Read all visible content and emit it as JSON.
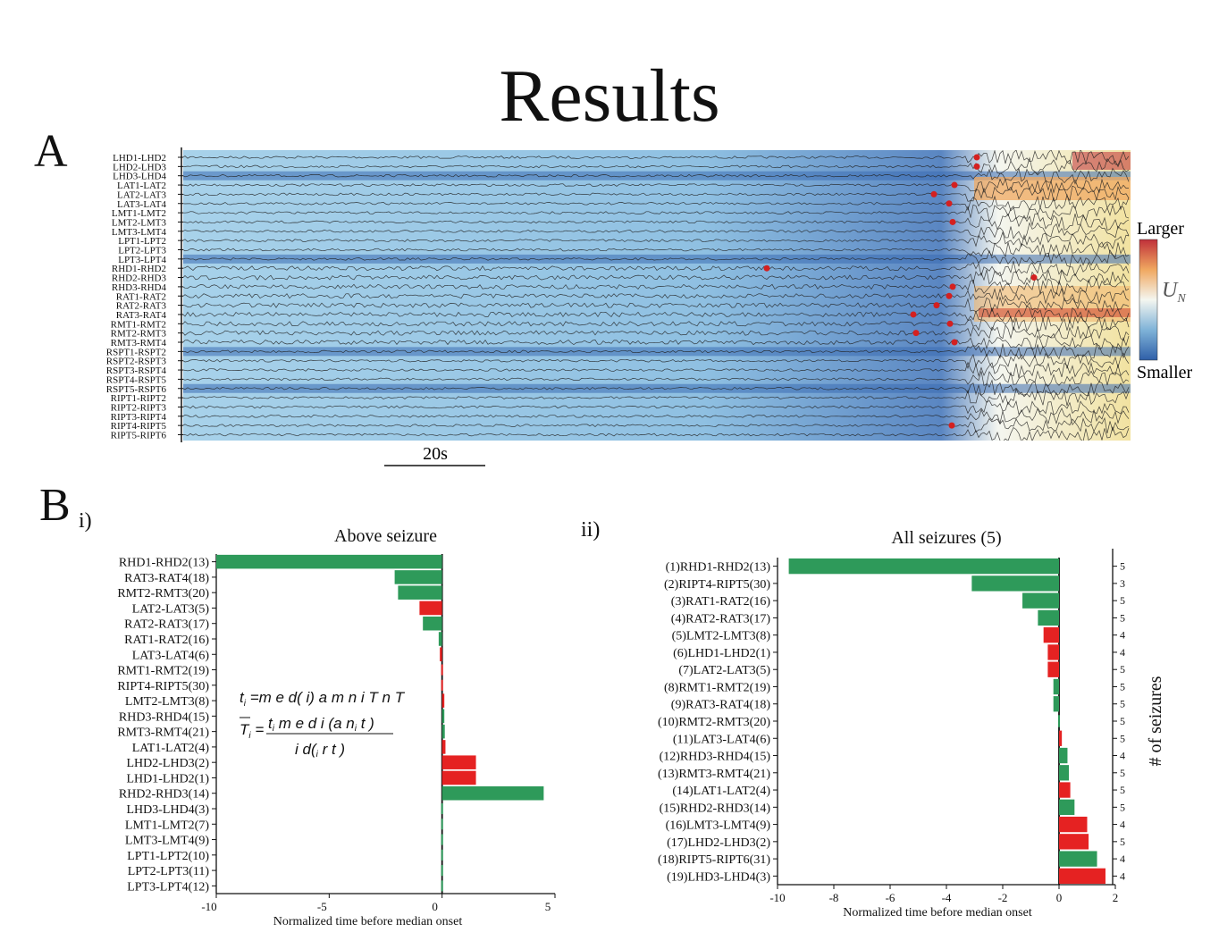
{
  "slide": {
    "title": "Results",
    "panel_a_letter": "A",
    "panel_b_letter": "B",
    "sub_i": "i)",
    "sub_ii": "ii)"
  },
  "panel_a": {
    "channels": [
      "LHD1-LHD2",
      "LHD2-LHD3",
      "LHD3-LHD4",
      "LAT1-LAT2",
      "LAT2-LAT3",
      "LAT3-LAT4",
      "LMT1-LMT2",
      "LMT2-LMT3",
      "LMT3-LMT4",
      "LPT1-LPT2",
      "LPT2-LPT3",
      "LPT3-LPT4",
      "RHD1-RHD2",
      "RHD2-RHD3",
      "RHD3-RHD4",
      "RAT1-RAT2",
      "RAT2-RAT3",
      "RAT3-RAT4",
      "RMT1-RMT2",
      "RMT2-RMT3",
      "RMT3-RMT4",
      "RSPT1-RSPT2",
      "RSPT2-RSPT3",
      "RSPT3-RSPT4",
      "RSPT4-RSPT5",
      "RSPT5-RSPT6",
      "RIPT1-RIPT2",
      "RIPT2-RIPT3",
      "RIPT3-RIPT4",
      "RIPT4-RIPT5",
      "RIPT5-RIPT6"
    ],
    "scale_bar_label": "20s",
    "colorbar": {
      "top_label": "Larger",
      "bottom_label": "Smaller",
      "symbol": "U",
      "subscript": "N"
    },
    "colors": {
      "low": "#2f5fa8",
      "mid": "#e8f2f6",
      "high": "#c0303a"
    }
  },
  "panel_b_i": {
    "chart_data": {
      "type": "bar",
      "orientation": "horizontal",
      "title": "Above seizure",
      "xlabel": "Normalized time before median onset",
      "xlim": [
        -10,
        5
      ],
      "xticks": [
        "-10",
        "-5",
        "0",
        "5"
      ],
      "categories": [
        "RHD1-RHD2(13)",
        "RAT3-RAT4(18)",
        "RMT2-RMT3(20)",
        "LAT2-LAT3(5)",
        "RAT2-RAT3(17)",
        "RAT1-RAT2(16)",
        "LAT3-LAT4(6)",
        "RMT1-RMT2(19)",
        "RIPT4-RIPT5(30)",
        "LMT2-LMT3(8)",
        "RHD3-RHD4(15)",
        "RMT3-RMT4(21)",
        "LAT1-LAT2(4)",
        "LHD2-LHD3(2)",
        "LHD1-LHD2(1)",
        "RHD2-RHD3(14)",
        "LHD3-LHD4(3)",
        "LMT1-LMT2(7)",
        "LMT3-LMT4(9)",
        "LPT1-LPT2(10)",
        "LPT2-LPT3(11)",
        "LPT3-LPT4(12)"
      ],
      "values": [
        -10,
        -2.1,
        -1.95,
        -1,
        -0.85,
        -0.15,
        -0.1,
        0,
        0,
        0.1,
        0.1,
        0.12,
        0.15,
        1.5,
        1.5,
        4.5,
        0,
        0,
        0,
        0,
        0,
        0
      ],
      "bar_colors": [
        "green",
        "green",
        "green",
        "red",
        "green",
        "green",
        "red",
        "red",
        "red",
        "red",
        "green",
        "green",
        "red",
        "red",
        "red",
        "green",
        "green",
        "green",
        "green",
        "green",
        "green",
        "green"
      ]
    }
  },
  "panel_b_ii": {
    "chart_data": {
      "type": "bar",
      "orientation": "horizontal",
      "title": "All seizures (5)",
      "xlabel": "Normalized time before median onset",
      "ylabel_right": "# of seizures",
      "xlim": [
        -10,
        2
      ],
      "xticks": [
        "-10",
        "-8",
        "-6",
        "-4",
        "-2",
        "0",
        "2"
      ],
      "categories": [
        "(1)RHD1-RHD2(13)",
        "(2)RIPT4-RIPT5(30)",
        "(3)RAT1-RAT2(16)",
        "(4)RAT2-RAT3(17)",
        "(5)LMT2-LMT3(8)",
        "(6)LHD1-LHD2(1)",
        "(7)LAT2-LAT3(5)",
        "(8)RMT1-RMT2(19)",
        "(9)RAT3-RAT4(18)",
        "(10)RMT2-RMT3(20)",
        "(11)LAT3-LAT4(6)",
        "(12)RHD3-RHD4(15)",
        "(13)RMT3-RMT4(21)",
        "(14)LAT1-LAT2(4)",
        "(15)RHD2-RHD3(14)",
        "(16)LMT3-LMT4(9)",
        "(17)LHD2-LHD3(2)",
        "(18)RIPT5-RIPT6(31)",
        "(19)LHD3-LHD4(3)"
      ],
      "values": [
        -9.6,
        -3.1,
        -1.3,
        -0.75,
        -0.55,
        -0.4,
        -0.4,
        -0.2,
        -0.2,
        0,
        0.1,
        0.3,
        0.35,
        0.4,
        0.55,
        1.0,
        1.05,
        1.35,
        1.65
      ],
      "bar_colors": [
        "green",
        "green",
        "green",
        "green",
        "red",
        "red",
        "red",
        "green",
        "green",
        "green",
        "red",
        "green",
        "green",
        "red",
        "green",
        "red",
        "red",
        "green",
        "red"
      ],
      "seizure_counts": [
        "5",
        "3",
        "5",
        "5",
        "4",
        "4",
        "5",
        "5",
        "5",
        "5",
        "5",
        "4",
        "5",
        "5",
        "5",
        "4",
        "5",
        "4",
        "4"
      ]
    }
  }
}
